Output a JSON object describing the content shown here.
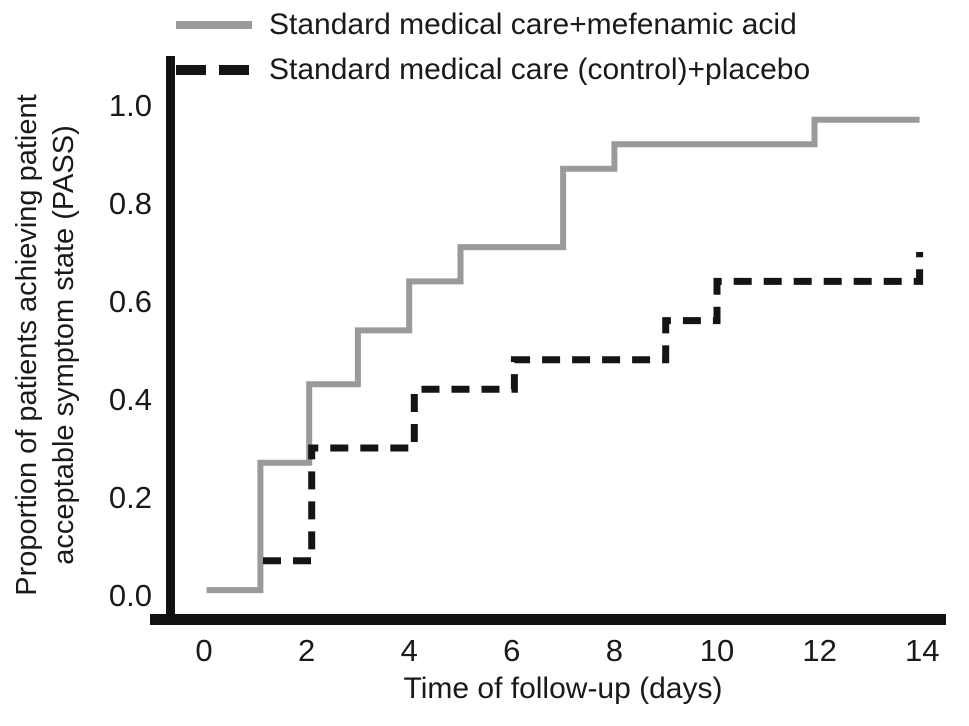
{
  "figure": {
    "background": "#ffffff",
    "text_color": "#1a1a1a",
    "axis_color": "#111111"
  },
  "chart_data": {
    "type": "line",
    "subtype": "kaplan-meier-step",
    "title": "",
    "xlabel": "Time of follow-up (days)",
    "ylabel_lines": [
      "Proportion of patients achieving patient",
      "acceptable symptom state (PASS)"
    ],
    "xlim": [
      0,
      14
    ],
    "ylim": [
      0.0,
      1.0
    ],
    "x_ticks": [
      "0",
      "2",
      "4",
      "6",
      "8",
      "10",
      "12",
      "14"
    ],
    "y_ticks": [
      "0.0",
      "0.2",
      "0.4",
      "0.6",
      "0.8",
      "1.0"
    ],
    "grid": false,
    "legend_position": "top-left",
    "series": [
      {
        "name": "Standard medical care+mefenamic acid",
        "style": "solid",
        "color": "#9a9a9a",
        "line_width": 6,
        "steps": [
          [
            0.05,
            0.01
          ],
          [
            1.1,
            0.01
          ],
          [
            1.1,
            0.27
          ],
          [
            2.05,
            0.27
          ],
          [
            2.05,
            0.43
          ],
          [
            3.0,
            0.43
          ],
          [
            3.0,
            0.54
          ],
          [
            4.0,
            0.54
          ],
          [
            4.0,
            0.64
          ],
          [
            5.0,
            0.64
          ],
          [
            5.0,
            0.71
          ],
          [
            7.0,
            0.71
          ],
          [
            7.0,
            0.87
          ],
          [
            8.0,
            0.87
          ],
          [
            8.0,
            0.92
          ],
          [
            11.9,
            0.92
          ],
          [
            11.9,
            0.97
          ],
          [
            13.95,
            0.97
          ]
        ]
      },
      {
        "name": "Standard medical care (control)+placebo",
        "style": "dashed",
        "color": "#141414",
        "line_width": 7,
        "steps": [
          [
            1.15,
            0.07
          ],
          [
            2.1,
            0.07
          ],
          [
            2.1,
            0.3
          ],
          [
            4.1,
            0.3
          ],
          [
            4.1,
            0.42
          ],
          [
            6.05,
            0.42
          ],
          [
            6.05,
            0.48
          ],
          [
            9.0,
            0.48
          ],
          [
            9.0,
            0.56
          ],
          [
            10.0,
            0.56
          ],
          [
            10.0,
            0.64
          ],
          [
            13.95,
            0.64
          ],
          [
            13.95,
            0.7
          ]
        ]
      }
    ]
  }
}
